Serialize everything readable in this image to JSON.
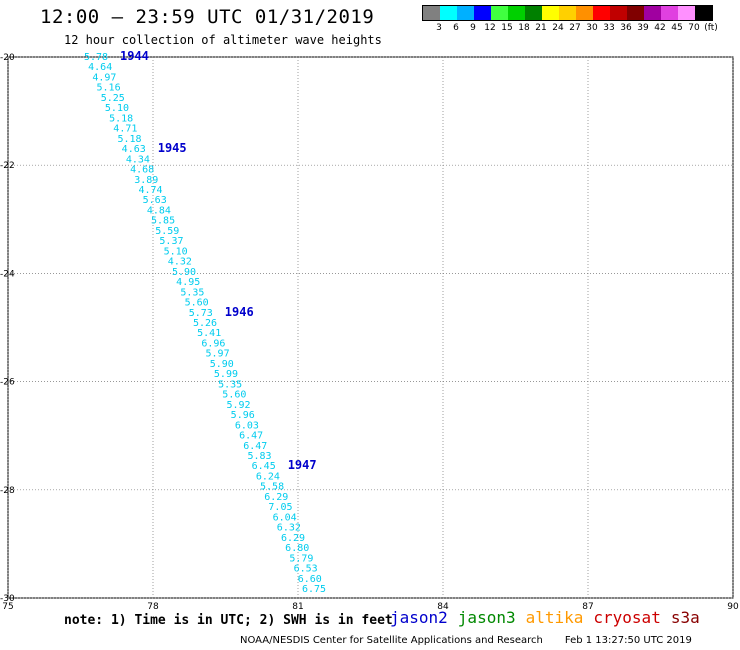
{
  "title": "12:00 — 23:59 UTC 01/31/2019",
  "subtitle": "12 hour collection of altimeter wave heights",
  "legend": {
    "colors": [
      "#808080",
      "#00ffff",
      "#00b0ff",
      "#0000ff",
      "#40ff40",
      "#00d000",
      "#008000",
      "#ffff00",
      "#ffd000",
      "#ff9000",
      "#ff0000",
      "#c00000",
      "#800000",
      "#a000a0",
      "#e040e0",
      "#ff90ff",
      "#000000"
    ],
    "labels": [
      "3",
      "6",
      "9",
      "12",
      "15",
      "18",
      "21",
      "24",
      "27",
      "30",
      "33",
      "36",
      "39",
      "42",
      "45",
      "70",
      "(ft)"
    ]
  },
  "axes": {
    "lon_ticks": [
      "75",
      "78",
      "81",
      "84",
      "87",
      "90"
    ],
    "lat_ticks": [
      "-20",
      "-22",
      "-24",
      "-26",
      "-28",
      "-30"
    ],
    "lon_range": [
      75,
      90
    ],
    "lat_range": [
      -20,
      -30
    ],
    "grid": "dotted"
  },
  "track": {
    "color": "#00ccee",
    "label_color": "#0000cc",
    "values": [
      "5.78",
      "4.64",
      "4.97",
      "5.16",
      "5.25",
      "5.10",
      "5.18",
      "4.71",
      "5.18",
      "4.63",
      "4.34",
      "4.68",
      "3.89",
      "4.74",
      "5.63",
      "4.84",
      "5.85",
      "5.59",
      "5.37",
      "5.10",
      "4.32",
      "5.90",
      "4.95",
      "5.35",
      "5.60",
      "5.73",
      "5.26",
      "5.41",
      "6.96",
      "5.97",
      "5.90",
      "5.99",
      "5.35",
      "5.60",
      "5.92",
      "5.96",
      "6.03",
      "6.47",
      "6.47",
      "5.83",
      "6.45",
      "6.24",
      "5.58",
      "6.29",
      "7.05",
      "6.04",
      "6.32",
      "6.29",
      "6.80",
      "5.79",
      "6.53",
      "6.60",
      "6.75"
    ],
    "time_labels": [
      {
        "text": "1944",
        "index": 0
      },
      {
        "text": "1945",
        "index": 9
      },
      {
        "text": "1946",
        "index": 25
      },
      {
        "text": "1947",
        "index": 40
      }
    ]
  },
  "footer": {
    "note": "note: 1) Time is in UTC; 2) SWH is in feet",
    "missions": [
      {
        "name": "jason2",
        "color": "#0000cc"
      },
      {
        "name": "jason3",
        "color": "#008800"
      },
      {
        "name": "altika",
        "color": "#ff9900"
      },
      {
        "name": "cryosat",
        "color": "#cc0000"
      },
      {
        "name": "s3a",
        "color": "#880000"
      }
    ],
    "credit": "NOAA/NESDIS Center for Satellite Applications and Research",
    "timestamp": "Feb  1 13:27:50 UTC 2019"
  }
}
